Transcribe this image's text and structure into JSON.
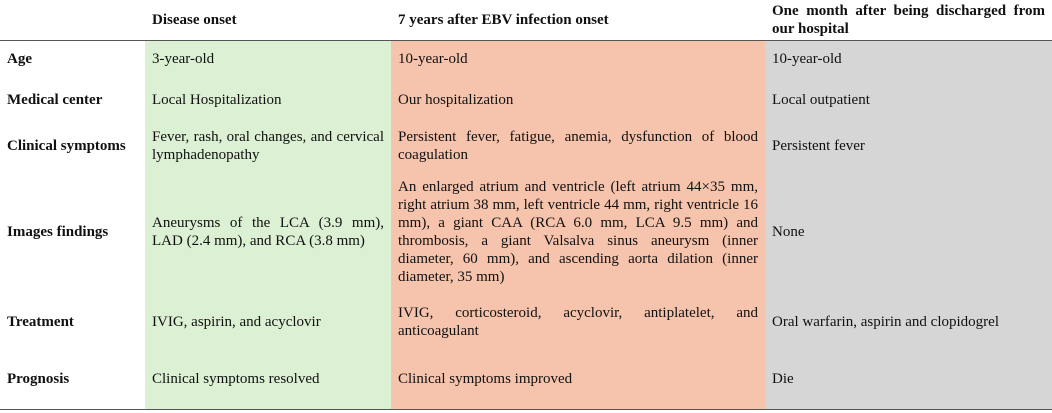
{
  "table": {
    "headers": [
      "",
      "Disease onset",
      "7 years after EBV infection onset",
      "One month after being discharged from our hospital"
    ],
    "rows": [
      {
        "label": "Age",
        "cells": [
          "3-year-old",
          "10-year-old",
          "10-year-old"
        ]
      },
      {
        "label": "Medical center",
        "cells": [
          "Local Hospitalization",
          "Our hospitalization",
          "Local outpatient"
        ]
      },
      {
        "label": "Clinical symptoms",
        "cells": [
          "Fever, rash, oral changes, and cervical lymphadenopathy",
          "Persistent fever, fatigue, anemia, dysfunction of blood coagulation",
          "Persistent fever"
        ]
      },
      {
        "label": "Images findings",
        "cells": [
          "Aneurysms of the LCA (3.9 mm), LAD (2.4 mm), and RCA (3.8 mm)",
          "An enlarged atrium and ventricle (left atrium 44×35 mm, right atrium 38 mm, left ventricle 44 mm, right ventricle 16 mm), a giant CAA (RCA 6.0 mm, LCA 9.5 mm) and thrombosis, a giant Valsalva sinus aneurysm (inner diameter, 60 mm), and ascending aorta dilation (inner diameter, 35 mm)",
          "None"
        ]
      },
      {
        "label": "Treatment",
        "cells": [
          "IVIG, aspirin, and acyclovir",
          "IVIG, corticosteroid, acyclovir, antiplatelet, and anticoagulant",
          "Oral warfarin, aspirin and clopidogrel"
        ]
      },
      {
        "label": "Prognosis",
        "cells": [
          "Clinical symptoms resolved",
          "Clinical symptoms improved",
          "Die"
        ]
      }
    ]
  },
  "colors": {
    "onset": "#dcf0d4",
    "after_ebv": "#f6c4ad",
    "after_discharge": "#d6d6d6"
  }
}
